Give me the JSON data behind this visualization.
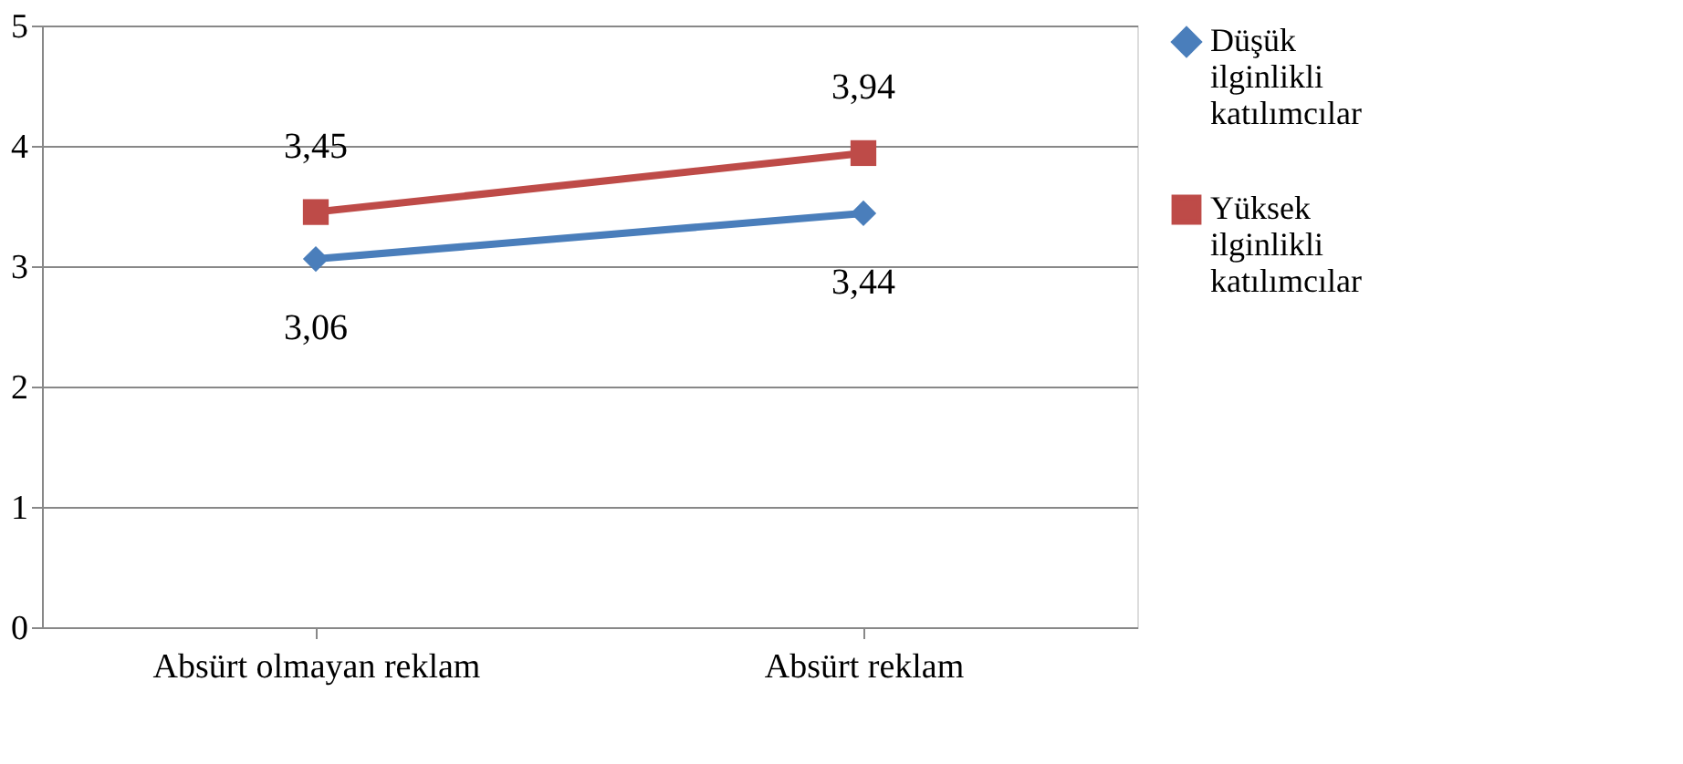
{
  "chart_data": {
    "type": "line",
    "categories": [
      "Absürt olmayan reklam",
      "Absürt reklam"
    ],
    "series": [
      {
        "name": "Düşük ilginlikli katılımcılar",
        "color": "#4a7ebb",
        "marker": "diamond",
        "values": [
          3.06,
          3.44
        ],
        "value_labels": [
          "3,06",
          "3,44"
        ]
      },
      {
        "name": "Yüksek ilginlikli katılımcılar",
        "color": "#be4b48",
        "marker": "square",
        "values": [
          3.45,
          3.94
        ],
        "value_labels": [
          "3,45",
          "3,94"
        ]
      }
    ],
    "ylim": [
      0,
      5
    ],
    "yticks": [
      0,
      1,
      2,
      3,
      4,
      5
    ],
    "grid": "y",
    "legend": "right"
  }
}
